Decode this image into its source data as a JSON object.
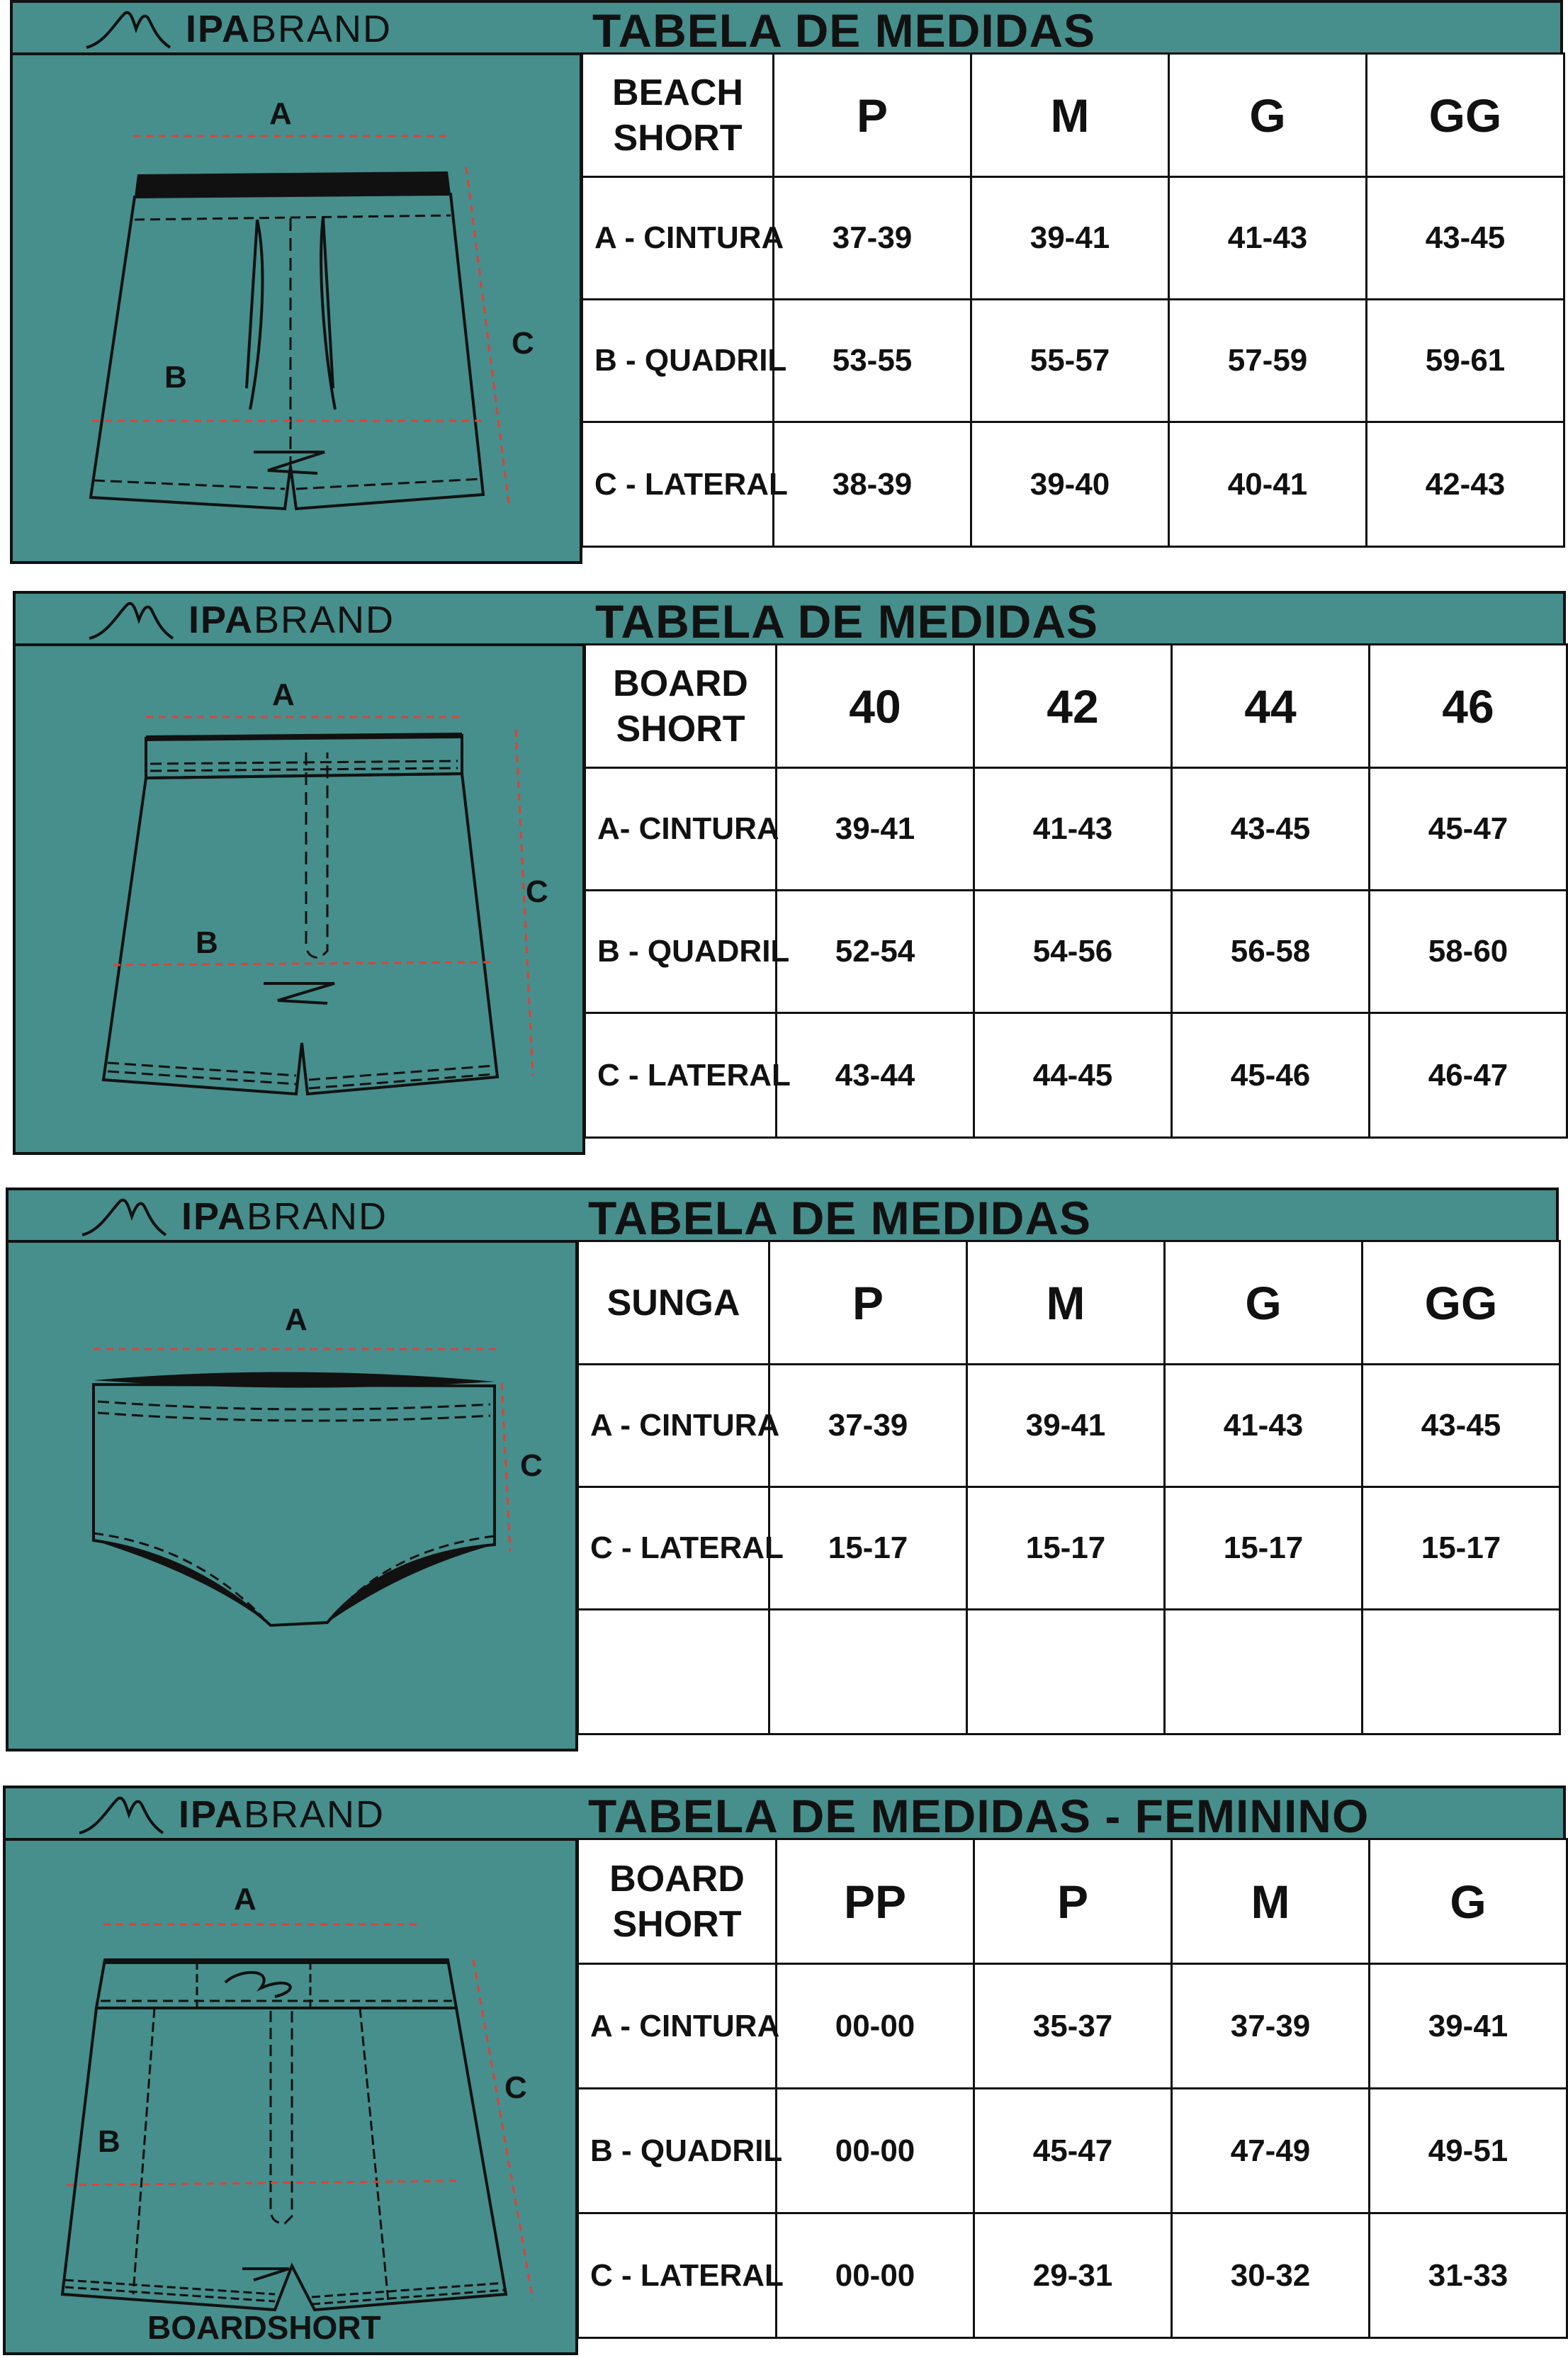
{
  "brand": {
    "bold": "IPA",
    "light": "BRAND"
  },
  "colors": {
    "teal": "#468f8c",
    "line": "#111111",
    "measure": "#d9423b"
  },
  "sections": [
    {
      "title": "TABELA DE MEDIDAS",
      "product": [
        "BEACH",
        "SHORT"
      ],
      "sizes": [
        "P",
        "M",
        "G",
        "GG"
      ],
      "rows": [
        {
          "label": "A - CINTURA",
          "values": [
            "37-39",
            "39-41",
            "41-43",
            "43-45"
          ]
        },
        {
          "label": "B - QUADRIL",
          "values": [
            "53-55",
            "55-57",
            "57-59",
            "59-61"
          ]
        },
        {
          "label": "C - LATERAL",
          "values": [
            "38-39",
            "39-40",
            "40-41",
            "42-43"
          ]
        }
      ],
      "diagram_labels": [
        "A",
        "B",
        "C"
      ]
    },
    {
      "title": "TABELA DE MEDIDAS",
      "product": [
        "BOARD",
        "SHORT"
      ],
      "sizes": [
        "40",
        "42",
        "44",
        "46"
      ],
      "rows": [
        {
          "label": "A- CINTURA",
          "values": [
            "39-41",
            "41-43",
            "43-45",
            "45-47"
          ]
        },
        {
          "label": "B - QUADRIL",
          "values": [
            "52-54",
            "54-56",
            "56-58",
            "58-60"
          ]
        },
        {
          "label": "C - LATERAL",
          "values": [
            "43-44",
            "44-45",
            "45-46",
            "46-47"
          ]
        }
      ],
      "diagram_labels": [
        "A",
        "B",
        "C"
      ]
    },
    {
      "title": "TABELA DE MEDIDAS",
      "product": [
        "SUNGA"
      ],
      "sizes": [
        "P",
        "M",
        "G",
        "GG"
      ],
      "rows": [
        {
          "label": "A - CINTURA",
          "values": [
            "37-39",
            "39-41",
            "41-43",
            "43-45"
          ]
        },
        {
          "label": "C - LATERAL",
          "values": [
            "15-17",
            "15-17",
            "15-17",
            "15-17"
          ]
        },
        {
          "label": "",
          "values": [
            "",
            "",
            "",
            ""
          ]
        }
      ],
      "diagram_labels": [
        "A",
        "C"
      ]
    },
    {
      "title": "TABELA DE MEDIDAS - FEMININO",
      "product": [
        "BOARD",
        "SHORT"
      ],
      "sizes": [
        "PP",
        "P",
        "M",
        "G"
      ],
      "rows": [
        {
          "label": "A - CINTURA",
          "values": [
            "00-00",
            "35-37",
            "37-39",
            "39-41"
          ]
        },
        {
          "label": "B - QUADRIL",
          "values": [
            "00-00",
            "45-47",
            "47-49",
            "49-51"
          ]
        },
        {
          "label": "C - LATERAL",
          "values": [
            "00-00",
            "29-31",
            "30-32",
            "31-33"
          ]
        }
      ],
      "diagram_labels": [
        "A",
        "B",
        "C"
      ],
      "caption": "BOARDSHORT"
    }
  ]
}
